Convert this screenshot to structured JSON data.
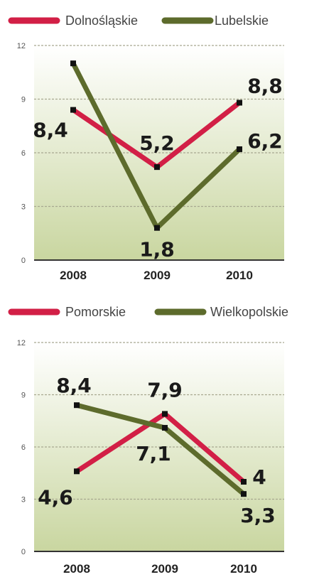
{
  "colors": {
    "red": "#d21f46",
    "green": "#5d6b2c",
    "grid": "#a8a890",
    "fill_top": "#ffffff",
    "fill_bottom": "#c9d6a0"
  },
  "chart_data": [
    {
      "type": "line",
      "categories": [
        "2008",
        "2009",
        "2010"
      ],
      "ylim": [
        0,
        12
      ],
      "yticks": [
        "0",
        "3",
        "6",
        "9",
        "12"
      ],
      "grid": true,
      "legend": "top",
      "series": [
        {
          "name": "Dolnośląskie",
          "color": "red",
          "values": [
            8.4,
            5.2,
            8.8
          ],
          "labels": [
            "8,4",
            "5,2",
            "8,8"
          ]
        },
        {
          "name": "Lubelskie",
          "color": "green",
          "values": [
            11.0,
            1.8,
            6.2
          ],
          "labels": [
            "",
            "1,8",
            "6,2"
          ]
        }
      ]
    },
    {
      "type": "line",
      "categories": [
        "2008",
        "2009",
        "2010"
      ],
      "ylim": [
        0,
        12
      ],
      "yticks": [
        "0",
        "3",
        "6",
        "9",
        "12"
      ],
      "grid": true,
      "legend": "top",
      "series": [
        {
          "name": "Pomorskie",
          "color": "red",
          "values": [
            4.6,
            7.9,
            4.0
          ],
          "labels": [
            "4,6",
            "7,9",
            "4"
          ]
        },
        {
          "name": "Wielkopolskie",
          "color": "green",
          "values": [
            8.4,
            7.1,
            3.3
          ],
          "labels": [
            "8,4",
            "7,1",
            "3,3"
          ]
        }
      ]
    }
  ]
}
